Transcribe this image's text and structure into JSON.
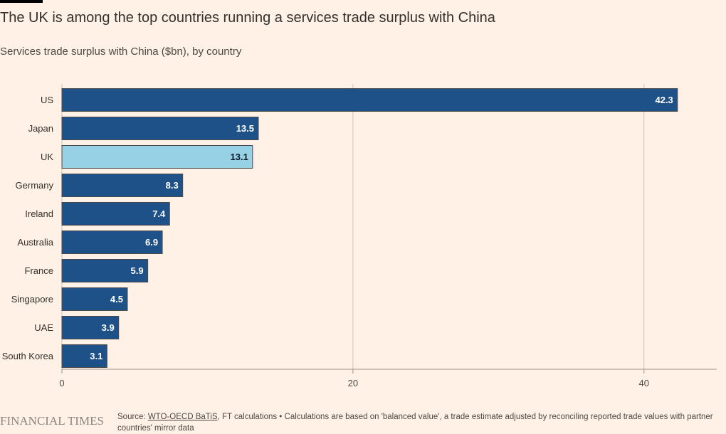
{
  "header": {
    "title": "The UK is among the top countries running a services trade surplus with China",
    "subtitle": "Services trade surplus with China ($bn), by country"
  },
  "colors": {
    "background": "#fff1e5",
    "bar": "#1f5189",
    "bar_highlight": "#96d1e6",
    "bar_border": "#4a4a4a",
    "label_on_bar": "#ffffff",
    "label_on_highlight": "#0d1b2a",
    "grid": "#ccc1b7",
    "axis": "#9b918c"
  },
  "chart_data": {
    "type": "bar",
    "orientation": "horizontal",
    "title": "The UK is among the top countries running a services trade surplus with China",
    "subtitle": "Services trade surplus with China ($bn), by country",
    "xlabel": "",
    "ylabel": "",
    "categories": [
      "US",
      "Japan",
      "UK",
      "Germany",
      "Ireland",
      "Australia",
      "France",
      "Singapore",
      "UAE",
      "South Korea"
    ],
    "values": [
      42.3,
      13.5,
      13.1,
      8.3,
      7.4,
      6.9,
      5.9,
      4.5,
      3.9,
      3.1
    ],
    "value_labels": [
      "42.3",
      "13.5",
      "13.1",
      "8.3",
      "7.4",
      "6.9",
      "5.9",
      "4.5",
      "3.9",
      "3.1"
    ],
    "highlight": "UK",
    "xlim": [
      0,
      45
    ],
    "xticks": [
      0,
      20,
      40
    ],
    "xtick_labels": [
      "0",
      "20",
      "40"
    ],
    "grid": true,
    "legend": "none"
  },
  "footer": {
    "logo": "FINANCIAL TIMES",
    "source_prefix": "Source: ",
    "source_link": "WTO-OECD BaTiS",
    "source_rest": ", FT calculations • Calculations are based on 'balanced value', a trade estimate adjusted by reconciling reported trade values with partner countries' mirror data"
  }
}
